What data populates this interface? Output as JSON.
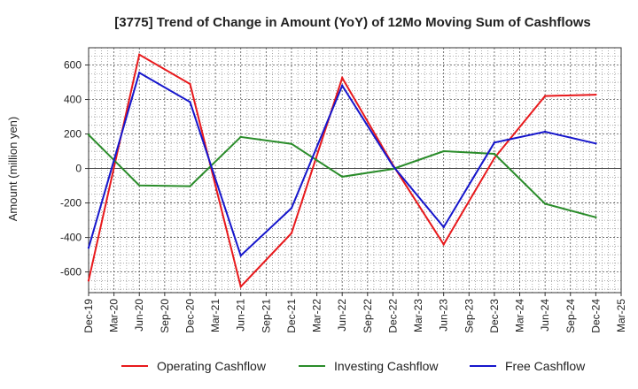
{
  "chart_data": {
    "type": "line",
    "title": "[3775]  Trend of Change in Amount (YoY) of 12Mo Moving Sum of Cashflows",
    "xlabel": "",
    "ylabel": "Amount (million yen)",
    "ylim": [
      -720,
      700
    ],
    "yticks": [
      -600,
      -400,
      -200,
      0,
      200,
      400,
      600
    ],
    "ytick_labels": [
      "-600",
      "-400",
      "-200",
      "0",
      "200",
      "400",
      "600"
    ],
    "categories": [
      "Dec-19",
      "Mar-20",
      "Jun-20",
      "Sep-20",
      "Dec-20",
      "Mar-21",
      "Jun-21",
      "Sep-21",
      "Dec-21",
      "Mar-22",
      "Jun-22",
      "Sep-22",
      "Dec-22",
      "Mar-23",
      "Jun-23",
      "Sep-23",
      "Dec-23",
      "Mar-24",
      "Jun-24",
      "Sep-24",
      "Dec-24",
      "Mar-25"
    ],
    "grid": true,
    "legend": "bottom",
    "series": [
      {
        "name": "Operating Cashflow",
        "color": "#e8191c",
        "x": [
          "Dec-19",
          "Jun-20",
          "Dec-20",
          "Jun-21",
          "Dec-21",
          "Jun-22",
          "Dec-22",
          "Jun-23",
          "Dec-23",
          "Jun-24",
          "Dec-24"
        ],
        "values": [
          -650,
          660,
          490,
          -685,
          -375,
          525,
          20,
          -440,
          60,
          420,
          428
        ]
      },
      {
        "name": "Investing Cashflow",
        "color": "#2a8c2a",
        "x": [
          "Dec-19",
          "Jun-20",
          "Dec-20",
          "Jun-21",
          "Dec-21",
          "Jun-22",
          "Dec-22",
          "Jun-23",
          "Dec-23",
          "Jun-24",
          "Dec-24"
        ],
        "values": [
          195,
          -98,
          -103,
          183,
          143,
          -48,
          -3,
          100,
          85,
          -205,
          -283
        ]
      },
      {
        "name": "Free Cashflow",
        "color": "#1616cc",
        "x": [
          "Dec-19",
          "Jun-20",
          "Dec-20",
          "Jun-21",
          "Dec-21",
          "Jun-22",
          "Dec-22",
          "Jun-23",
          "Dec-23",
          "Jun-24",
          "Dec-24"
        ],
        "values": [
          -460,
          555,
          385,
          -505,
          -230,
          480,
          15,
          -340,
          150,
          213,
          145
        ]
      }
    ]
  }
}
